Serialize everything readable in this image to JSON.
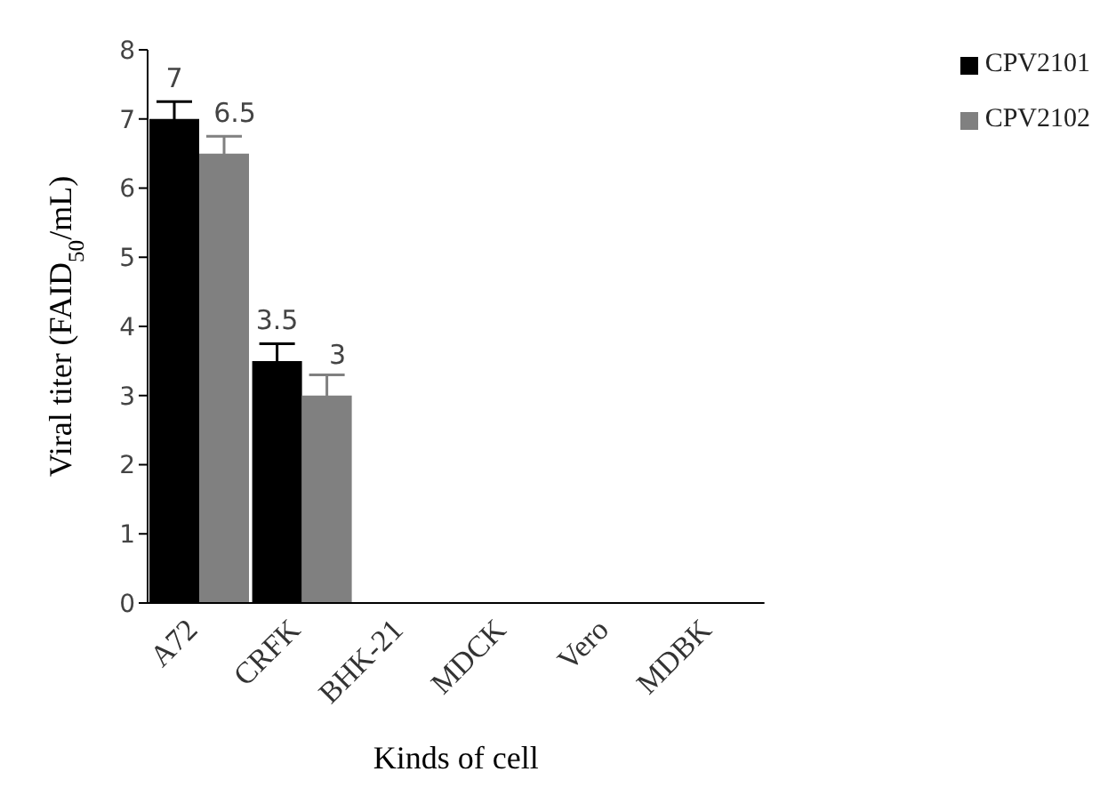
{
  "chart_data": {
    "type": "bar",
    "xlabel": "Kinds of cell",
    "ylabel": "Viral titer (FAID$_{50}$/mL)",
    "categories": [
      "A72",
      "CRFK",
      "BHK-21",
      "MDCK",
      "Vero",
      "MDBK"
    ],
    "series": [
      {
        "name": "CPV2101",
        "color": "#000000",
        "values": [
          7,
          3.5,
          0,
          0,
          0,
          0
        ],
        "errors": [
          0.25,
          0.25,
          null,
          null,
          null,
          null
        ],
        "value_labels": [
          "7",
          "3.5",
          null,
          null,
          null,
          null
        ]
      },
      {
        "name": "CPV2102",
        "color": "#808080",
        "values": [
          6.5,
          3,
          0,
          0,
          0,
          0
        ],
        "errors": [
          0.25,
          0.3,
          null,
          null,
          null,
          null
        ],
        "value_labels": [
          "6.5",
          "3",
          null,
          null,
          null,
          null
        ]
      }
    ],
    "ylim": [
      0,
      8
    ],
    "yticks": [
      0,
      1,
      2,
      3,
      4,
      5,
      6,
      7,
      8
    ],
    "grid": false,
    "legend": "top right"
  }
}
